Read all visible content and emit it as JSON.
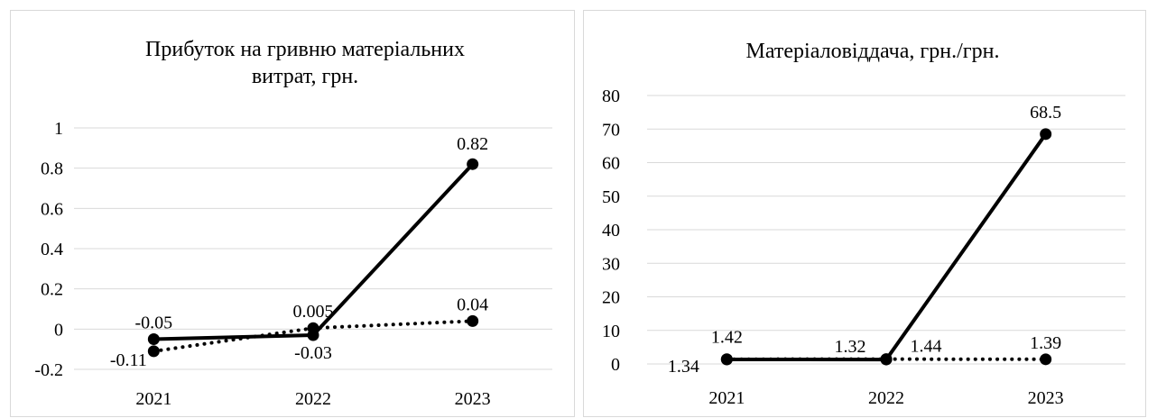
{
  "chart_data": [
    {
      "type": "line",
      "title": "Прибуток на гривню матеріальних витрат, грн.",
      "title_lines": [
        "Прибуток на гривню матеріальних",
        "витрат, грн."
      ],
      "categories": [
        "2021",
        "2022",
        "2023"
      ],
      "ylim": [
        -0.2,
        1
      ],
      "yticks": [
        "-0.2",
        "0",
        "0.2",
        "0.4",
        "0.6",
        "0.8",
        "1"
      ],
      "grid": true,
      "series": [
        {
          "style": "solid",
          "values": [
            -0.05,
            -0.03,
            0.82
          ],
          "labels": [
            "-0.05",
            "-0.03",
            "0.82"
          ]
        },
        {
          "style": "dotted",
          "values": [
            -0.11,
            0.005,
            0.04
          ],
          "labels": [
            "-0.11",
            "0.005",
            "0.04"
          ]
        }
      ]
    },
    {
      "type": "line",
      "title": "Матеріаловіддача, грн./грн.",
      "title_lines": [
        "Матеріаловіддача, грн./грн."
      ],
      "categories": [
        "2021",
        "2022",
        "2023"
      ],
      "ylim": [
        0,
        80
      ],
      "yticks": [
        "0",
        "10",
        "20",
        "30",
        "40",
        "50",
        "60",
        "70",
        "80"
      ],
      "grid": true,
      "series": [
        {
          "style": "solid",
          "values": [
            1.34,
            1.32,
            68.5
          ],
          "labels": [
            "1.34",
            "1.32",
            "68.5"
          ]
        },
        {
          "style": "dotted",
          "values": [
            1.42,
            1.44,
            1.39
          ],
          "labels": [
            "1.42",
            "1.44",
            "1.39"
          ]
        }
      ]
    }
  ]
}
